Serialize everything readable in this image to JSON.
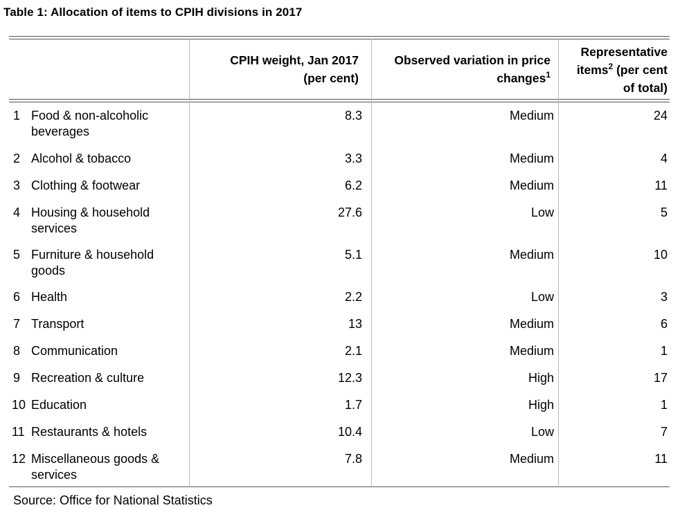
{
  "title": "Table 1: Allocation of items to CPIH divisions in 2017",
  "headers": {
    "weight_line1": "CPIH weight, Jan 2017",
    "weight_line2": "(per cent)",
    "variation_line1": "Observed variation in price",
    "variation_line2": "changes",
    "variation_sup": "1",
    "rep_line1": "Representative",
    "rep_line2a": "items",
    "rep_sup": "2",
    "rep_line2b": " (per cent",
    "rep_line3": "of total)"
  },
  "rows": [
    {
      "num": "1",
      "label": "Food & non-alcoholic beverages",
      "weight": "8.3",
      "variation": "Medium",
      "rep": "24"
    },
    {
      "num": "2",
      "label": "Alcohol & tobacco",
      "weight": "3.3",
      "variation": "Medium",
      "rep": "4"
    },
    {
      "num": "3",
      "label": "Clothing & footwear",
      "weight": "6.2",
      "variation": "Medium",
      "rep": "11"
    },
    {
      "num": "4",
      "label": "Housing & household services",
      "weight": "27.6",
      "variation": "Low",
      "rep": "5"
    },
    {
      "num": "5",
      "label": "Furniture & household goods",
      "weight": "5.1",
      "variation": "Medium",
      "rep": "10"
    },
    {
      "num": "6",
      "label": "Health",
      "weight": "2.2",
      "variation": "Low",
      "rep": "3"
    },
    {
      "num": "7",
      "label": "Transport",
      "weight": "13",
      "variation": "Medium",
      "rep": "6"
    },
    {
      "num": "8",
      "label": "Communication",
      "weight": "2.1",
      "variation": "Medium",
      "rep": "1"
    },
    {
      "num": "9",
      "label": "Recreation & culture",
      "weight": "12.3",
      "variation": "High",
      "rep": "17"
    },
    {
      "num": "10",
      "label": "Education",
      "weight": "1.7",
      "variation": "High",
      "rep": "1"
    },
    {
      "num": "11",
      "label": "Restaurants & hotels",
      "weight": "10.4",
      "variation": "Low",
      "rep": "7"
    },
    {
      "num": "12",
      "label": "Miscellaneous goods & services",
      "weight": "7.8",
      "variation": "Medium",
      "rep": "11"
    }
  ],
  "source": "Source: Office for National Statistics"
}
